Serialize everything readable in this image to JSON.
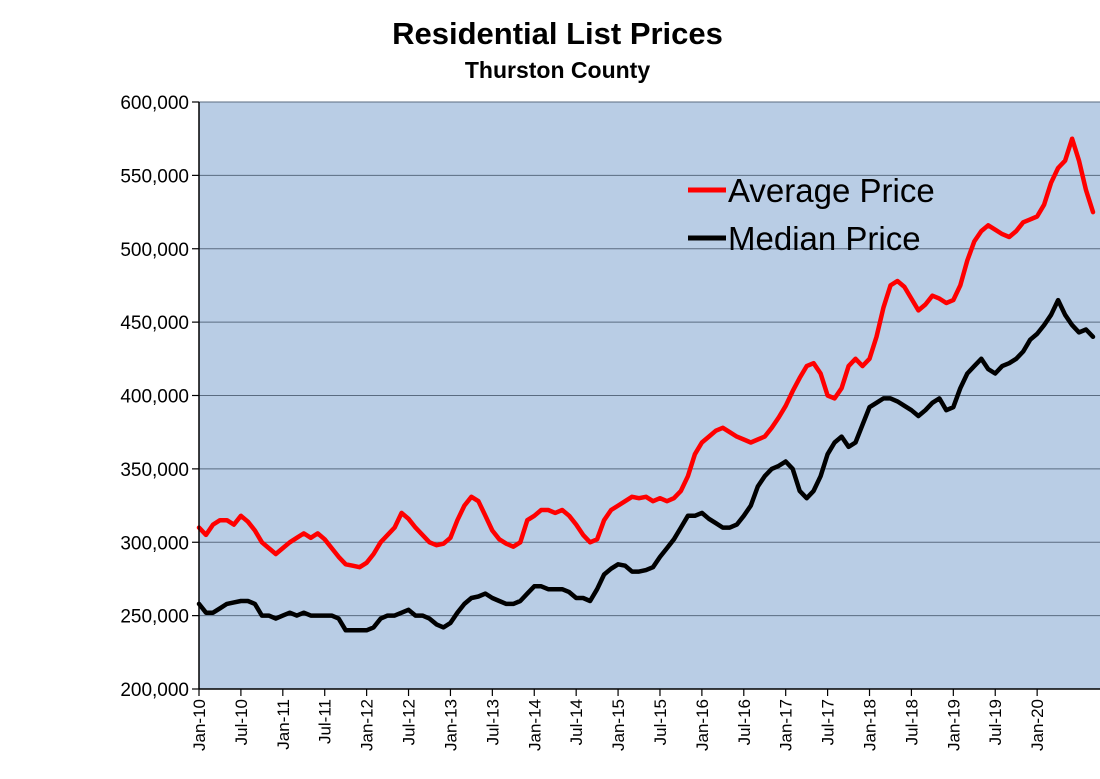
{
  "chart_data": {
    "type": "line",
    "title": "Residential List Prices",
    "subtitle": "Thurston County",
    "xlabel": "",
    "ylabel": "",
    "ylim": [
      200000,
      600000
    ],
    "yticks": [
      "200,000",
      "250,000",
      "300,000",
      "350,000",
      "400,000",
      "450,000",
      "500,000",
      "550,000",
      "600,000"
    ],
    "ytick_values": [
      200000,
      250000,
      300000,
      350000,
      400000,
      450000,
      500000,
      550000,
      600000
    ],
    "xticks": [
      "Jan-10",
      "Jul-10",
      "Jan-11",
      "Jul-11",
      "Jan-12",
      "Jul-12",
      "Jan-13",
      "Jul-13",
      "Jan-14",
      "Jul-14",
      "Jan-15",
      "Jul-15",
      "Jan-16",
      "Jul-16",
      "Jan-17",
      "Jul-17",
      "Jan-18",
      "Jul-18",
      "Jan-19",
      "Jul-19",
      "Jan-20"
    ],
    "grid": true,
    "legend": "top-right",
    "colors": {
      "plot_bg": "#b9cde5",
      "average": "#ff0000",
      "median": "#000000"
    },
    "x_unit": "months since Jan-10",
    "series": [
      {
        "name": "Average Price",
        "color": "#ff0000",
        "points": [
          [
            0,
            310000
          ],
          [
            1,
            305000
          ],
          [
            2,
            312000
          ],
          [
            3,
            315000
          ],
          [
            4,
            315000
          ],
          [
            5,
            312000
          ],
          [
            6,
            318000
          ],
          [
            7,
            314000
          ],
          [
            8,
            308000
          ],
          [
            9,
            300000
          ],
          [
            10,
            296000
          ],
          [
            11,
            292000
          ],
          [
            12,
            296000
          ],
          [
            13,
            300000
          ],
          [
            14,
            303000
          ],
          [
            15,
            306000
          ],
          [
            16,
            303000
          ],
          [
            17,
            306000
          ],
          [
            18,
            302000
          ],
          [
            19,
            296000
          ],
          [
            20,
            290000
          ],
          [
            21,
            285000
          ],
          [
            22,
            284000
          ],
          [
            23,
            283000
          ],
          [
            24,
            286000
          ],
          [
            25,
            292000
          ],
          [
            26,
            300000
          ],
          [
            27,
            305000
          ],
          [
            28,
            310000
          ],
          [
            29,
            320000
          ],
          [
            30,
            316000
          ],
          [
            31,
            310000
          ],
          [
            32,
            305000
          ],
          [
            33,
            300000
          ],
          [
            34,
            298000
          ],
          [
            35,
            299000
          ],
          [
            36,
            303000
          ],
          [
            37,
            315000
          ],
          [
            38,
            325000
          ],
          [
            39,
            331000
          ],
          [
            40,
            328000
          ],
          [
            41,
            318000
          ],
          [
            42,
            308000
          ],
          [
            43,
            302000
          ],
          [
            44,
            299000
          ],
          [
            45,
            297000
          ],
          [
            46,
            300000
          ],
          [
            47,
            315000
          ],
          [
            48,
            318000
          ],
          [
            49,
            322000
          ],
          [
            50,
            322000
          ],
          [
            51,
            320000
          ],
          [
            52,
            322000
          ],
          [
            53,
            318000
          ],
          [
            54,
            312000
          ],
          [
            55,
            305000
          ],
          [
            56,
            300000
          ],
          [
            57,
            302000
          ],
          [
            58,
            315000
          ],
          [
            59,
            322000
          ],
          [
            60,
            325000
          ],
          [
            61,
            328000
          ],
          [
            62,
            331000
          ],
          [
            63,
            330000
          ],
          [
            64,
            331000
          ],
          [
            65,
            328000
          ],
          [
            66,
            330000
          ],
          [
            67,
            328000
          ],
          [
            68,
            330000
          ],
          [
            69,
            335000
          ],
          [
            70,
            345000
          ],
          [
            71,
            360000
          ],
          [
            72,
            368000
          ],
          [
            73,
            372000
          ],
          [
            74,
            376000
          ],
          [
            75,
            378000
          ],
          [
            76,
            375000
          ],
          [
            77,
            372000
          ],
          [
            78,
            370000
          ],
          [
            79,
            368000
          ],
          [
            80,
            370000
          ],
          [
            81,
            372000
          ],
          [
            82,
            378000
          ],
          [
            83,
            385000
          ],
          [
            84,
            393000
          ],
          [
            85,
            403000
          ],
          [
            86,
            412000
          ],
          [
            87,
            420000
          ],
          [
            88,
            422000
          ],
          [
            89,
            415000
          ],
          [
            90,
            400000
          ],
          [
            91,
            398000
          ],
          [
            92,
            405000
          ],
          [
            93,
            420000
          ],
          [
            94,
            425000
          ],
          [
            95,
            420000
          ],
          [
            96,
            425000
          ],
          [
            97,
            440000
          ],
          [
            98,
            460000
          ],
          [
            99,
            475000
          ],
          [
            100,
            478000
          ],
          [
            101,
            474000
          ],
          [
            102,
            466000
          ],
          [
            103,
            458000
          ],
          [
            104,
            462000
          ],
          [
            105,
            468000
          ],
          [
            106,
            466000
          ],
          [
            107,
            463000
          ],
          [
            108,
            465000
          ],
          [
            109,
            475000
          ],
          [
            110,
            492000
          ],
          [
            111,
            505000
          ],
          [
            112,
            512000
          ],
          [
            113,
            516000
          ],
          [
            114,
            513000
          ],
          [
            115,
            510000
          ],
          [
            116,
            508000
          ],
          [
            117,
            512000
          ],
          [
            118,
            518000
          ],
          [
            119,
            520000
          ],
          [
            120,
            522000
          ],
          [
            121,
            530000
          ],
          [
            122,
            545000
          ],
          [
            123,
            555000
          ],
          [
            124,
            560000
          ],
          [
            125,
            575000
          ],
          [
            126,
            560000
          ],
          [
            127,
            540000
          ],
          [
            128,
            525000
          ]
        ]
      },
      {
        "name": "Median Price",
        "color": "#000000",
        "points": [
          [
            0,
            258000
          ],
          [
            1,
            252000
          ],
          [
            2,
            252000
          ],
          [
            3,
            255000
          ],
          [
            4,
            258000
          ],
          [
            5,
            259000
          ],
          [
            6,
            260000
          ],
          [
            7,
            260000
          ],
          [
            8,
            258000
          ],
          [
            9,
            250000
          ],
          [
            10,
            250000
          ],
          [
            11,
            248000
          ],
          [
            12,
            250000
          ],
          [
            13,
            252000
          ],
          [
            14,
            250000
          ],
          [
            15,
            252000
          ],
          [
            16,
            250000
          ],
          [
            17,
            250000
          ],
          [
            18,
            250000
          ],
          [
            19,
            250000
          ],
          [
            20,
            248000
          ],
          [
            21,
            240000
          ],
          [
            22,
            240000
          ],
          [
            23,
            240000
          ],
          [
            24,
            240000
          ],
          [
            25,
            242000
          ],
          [
            26,
            248000
          ],
          [
            27,
            250000
          ],
          [
            28,
            250000
          ],
          [
            29,
            252000
          ],
          [
            30,
            254000
          ],
          [
            31,
            250000
          ],
          [
            32,
            250000
          ],
          [
            33,
            248000
          ],
          [
            34,
            244000
          ],
          [
            35,
            242000
          ],
          [
            36,
            245000
          ],
          [
            37,
            252000
          ],
          [
            38,
            258000
          ],
          [
            39,
            262000
          ],
          [
            40,
            263000
          ],
          [
            41,
            265000
          ],
          [
            42,
            262000
          ],
          [
            43,
            260000
          ],
          [
            44,
            258000
          ],
          [
            45,
            258000
          ],
          [
            46,
            260000
          ],
          [
            47,
            265000
          ],
          [
            48,
            270000
          ],
          [
            49,
            270000
          ],
          [
            50,
            268000
          ],
          [
            51,
            268000
          ],
          [
            52,
            268000
          ],
          [
            53,
            266000
          ],
          [
            54,
            262000
          ],
          [
            55,
            262000
          ],
          [
            56,
            260000
          ],
          [
            57,
            268000
          ],
          [
            58,
            278000
          ],
          [
            59,
            282000
          ],
          [
            60,
            285000
          ],
          [
            61,
            284000
          ],
          [
            62,
            280000
          ],
          [
            63,
            280000
          ],
          [
            64,
            281000
          ],
          [
            65,
            283000
          ],
          [
            66,
            290000
          ],
          [
            67,
            296000
          ],
          [
            68,
            302000
          ],
          [
            69,
            310000
          ],
          [
            70,
            318000
          ],
          [
            71,
            318000
          ],
          [
            72,
            320000
          ],
          [
            73,
            316000
          ],
          [
            74,
            313000
          ],
          [
            75,
            310000
          ],
          [
            76,
            310000
          ],
          [
            77,
            312000
          ],
          [
            78,
            318000
          ],
          [
            79,
            325000
          ],
          [
            80,
            338000
          ],
          [
            81,
            345000
          ],
          [
            82,
            350000
          ],
          [
            83,
            352000
          ],
          [
            84,
            355000
          ],
          [
            85,
            350000
          ],
          [
            86,
            335000
          ],
          [
            87,
            330000
          ],
          [
            88,
            335000
          ],
          [
            89,
            345000
          ],
          [
            90,
            360000
          ],
          [
            91,
            368000
          ],
          [
            92,
            372000
          ],
          [
            93,
            365000
          ],
          [
            94,
            368000
          ],
          [
            95,
            380000
          ],
          [
            96,
            392000
          ],
          [
            97,
            395000
          ],
          [
            98,
            398000
          ],
          [
            99,
            398000
          ],
          [
            100,
            396000
          ],
          [
            101,
            393000
          ],
          [
            102,
            390000
          ],
          [
            103,
            386000
          ],
          [
            104,
            390000
          ],
          [
            105,
            395000
          ],
          [
            106,
            398000
          ],
          [
            107,
            390000
          ],
          [
            108,
            392000
          ],
          [
            109,
            405000
          ],
          [
            110,
            415000
          ],
          [
            111,
            420000
          ],
          [
            112,
            425000
          ],
          [
            113,
            418000
          ],
          [
            114,
            415000
          ],
          [
            115,
            420000
          ],
          [
            116,
            422000
          ],
          [
            117,
            425000
          ],
          [
            118,
            430000
          ],
          [
            119,
            438000
          ],
          [
            120,
            442000
          ],
          [
            121,
            448000
          ],
          [
            122,
            455000
          ],
          [
            123,
            465000
          ],
          [
            124,
            455000
          ],
          [
            125,
            448000
          ],
          [
            126,
            443000
          ],
          [
            127,
            445000
          ],
          [
            128,
            440000
          ]
        ]
      }
    ]
  }
}
